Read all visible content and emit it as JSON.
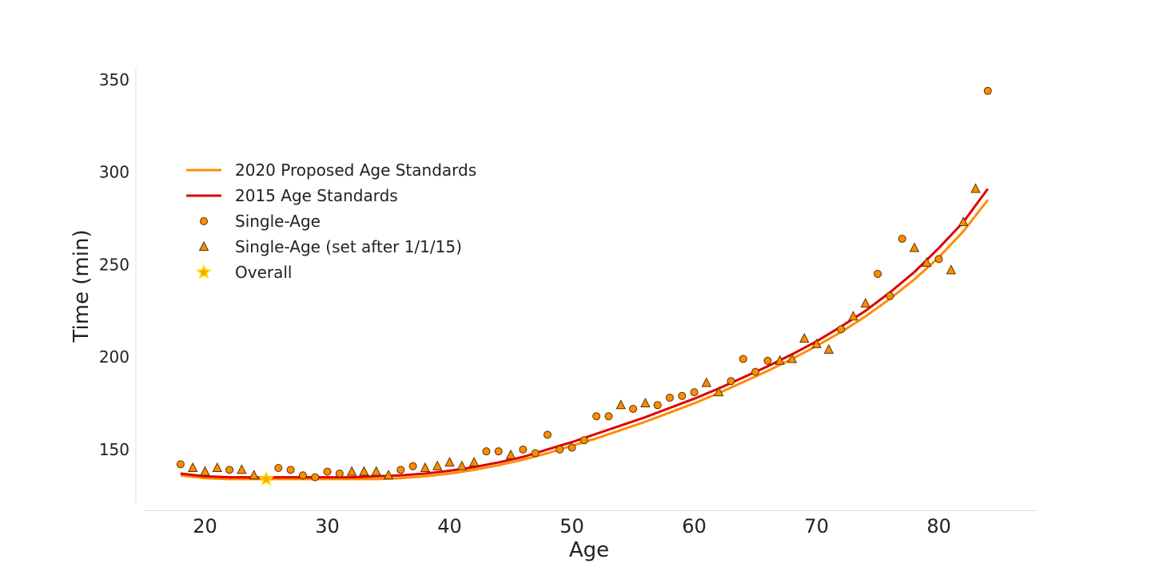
{
  "chart_data": {
    "type": "scatter",
    "title": "",
    "xlabel": "Age",
    "ylabel": "Time (min)",
    "xlim": [
      15,
      88
    ],
    "ylim": [
      121,
      356
    ],
    "xticks": [
      20,
      30,
      40,
      50,
      60,
      70,
      80
    ],
    "yticks": [
      150,
      200,
      250,
      300,
      350
    ],
    "grid": false,
    "legend_position": "upper-left",
    "series": [
      {
        "name": "2020 Proposed Age Standards",
        "kind": "line",
        "color": "#ff8c00",
        "x": [
          18,
          20,
          22,
          24,
          26,
          28,
          30,
          32,
          34,
          36,
          38,
          40,
          42,
          44,
          46,
          48,
          50,
          52,
          54,
          56,
          58,
          60,
          62,
          64,
          66,
          68,
          70,
          72,
          74,
          76,
          78,
          80,
          82,
          84
        ],
        "y": [
          136,
          134.5,
          134,
          134,
          134,
          134,
          134,
          134,
          134,
          134.5,
          135.5,
          137,
          139,
          141.5,
          144.5,
          148,
          152,
          156,
          160.5,
          165,
          170,
          175,
          180.5,
          186.5,
          192.5,
          199,
          206,
          213.5,
          222,
          231.5,
          242,
          254,
          268,
          285
        ]
      },
      {
        "name": "2015 Age Standards",
        "kind": "line",
        "color": "#e00000",
        "x": [
          18,
          20,
          22,
          24,
          26,
          28,
          30,
          32,
          34,
          36,
          38,
          40,
          42,
          44,
          46,
          48,
          50,
          52,
          54,
          56,
          58,
          60,
          62,
          64,
          66,
          68,
          70,
          72,
          74,
          76,
          78,
          80,
          82,
          84
        ],
        "y": [
          137,
          135.5,
          135,
          135,
          135,
          135,
          135,
          135,
          135.5,
          136,
          137,
          138.5,
          140.5,
          143,
          146,
          150,
          154,
          158.5,
          163,
          167.5,
          172.5,
          177.5,
          183,
          189,
          195,
          201.5,
          208.5,
          216.5,
          225,
          235,
          246,
          259,
          273,
          291
        ]
      },
      {
        "name": "Single-Age",
        "kind": "circle",
        "color": "#ff8c00",
        "x": [
          18,
          22,
          26,
          27,
          28,
          29,
          30,
          31,
          36,
          37,
          43,
          44,
          46,
          47,
          48,
          49,
          50,
          51,
          52,
          53,
          55,
          57,
          58,
          59,
          60,
          63,
          64,
          65,
          66,
          72,
          75,
          76,
          77,
          80,
          84
        ],
        "y": [
          142,
          139,
          140,
          139,
          136,
          135,
          138,
          137,
          139,
          141,
          149,
          149,
          150,
          148,
          158,
          150,
          151,
          155,
          168,
          168,
          172,
          174,
          178,
          179,
          181,
          187,
          199,
          192,
          198,
          215,
          245,
          233,
          264,
          253,
          344
        ]
      },
      {
        "name": "Single-Age (set after 1/1/15)",
        "kind": "triangle",
        "color": "#ff8c00",
        "x": [
          19,
          20,
          21,
          23,
          24,
          32,
          33,
          34,
          35,
          38,
          39,
          40,
          41,
          42,
          45,
          54,
          56,
          61,
          62,
          67,
          68,
          69,
          70,
          71,
          73,
          74,
          78,
          79,
          81,
          82,
          83
        ],
        "y": [
          140,
          138,
          140,
          139,
          136,
          138,
          138,
          138,
          136,
          140,
          141,
          143,
          141,
          143,
          147,
          174,
          175,
          186,
          181,
          198,
          199,
          210,
          207,
          204,
          222,
          229,
          259,
          251,
          247,
          273,
          291
        ]
      },
      {
        "name": "Overall",
        "kind": "star",
        "color": "#ffa500",
        "x": [
          25
        ],
        "y": [
          134
        ]
      }
    ]
  }
}
